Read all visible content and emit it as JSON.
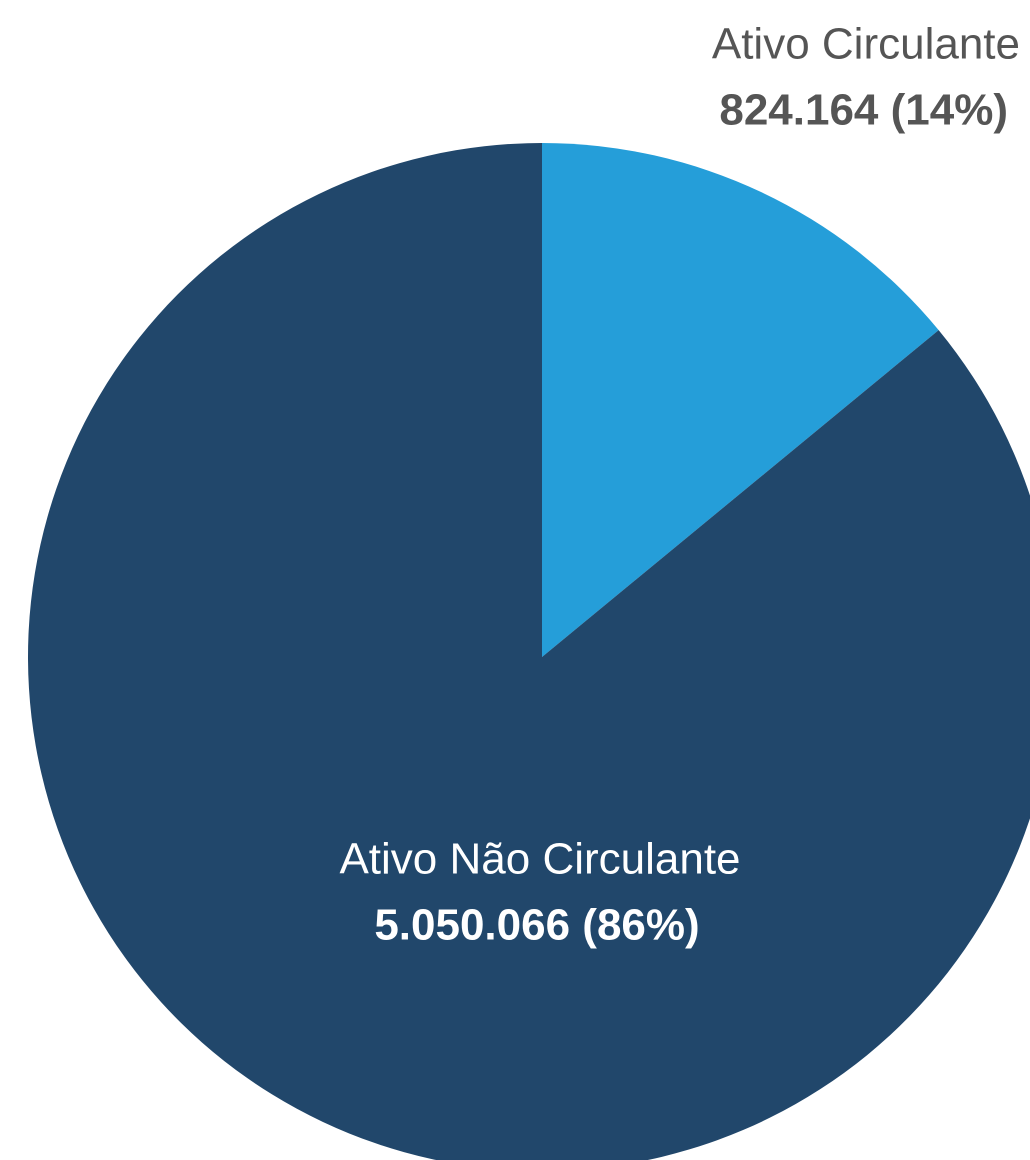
{
  "chart_data": {
    "type": "pie",
    "categories": [
      "Ativo Circulante",
      "Ativo Não Circulante"
    ],
    "values": [
      824164,
      5050066
    ],
    "value_labels": [
      "824.164 (14%)",
      "5.050.066 (86%)"
    ],
    "colors": [
      "#259ed9",
      "#21476b"
    ]
  }
}
